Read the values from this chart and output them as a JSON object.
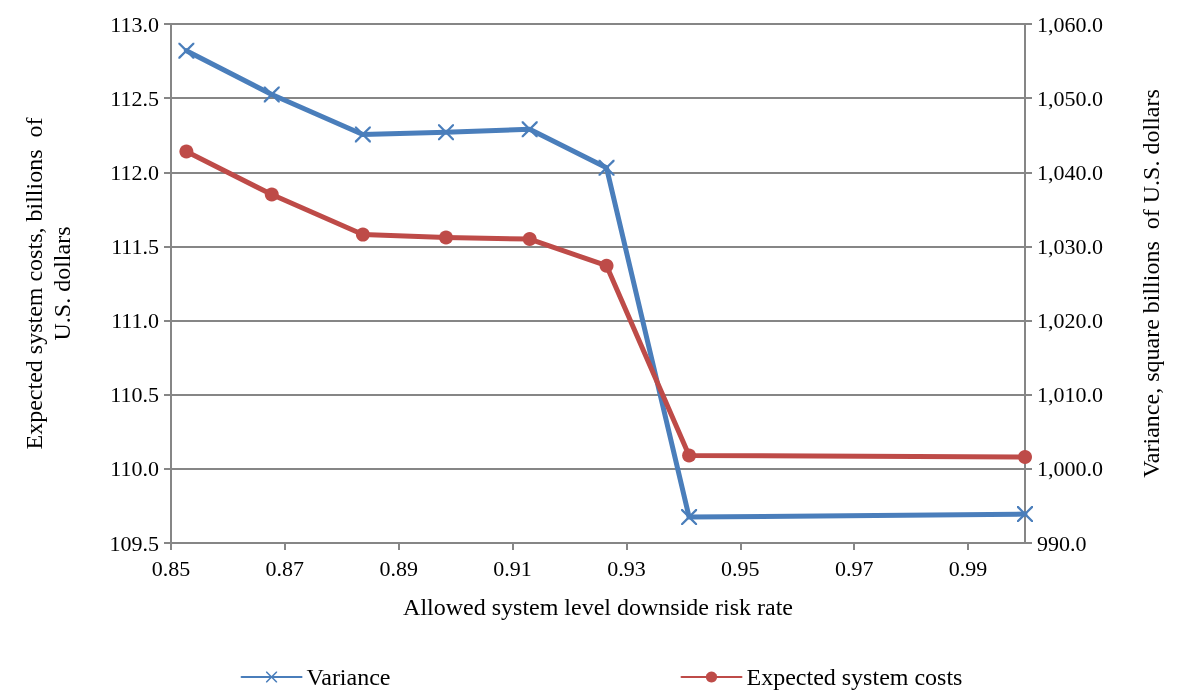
{
  "chart_data": {
    "type": "line",
    "xlabel": "Allowed system level downside risk rate",
    "ylabel": "Expected system costs, billions  of U.S. dollars",
    "y2label": "Variance, square billions  of U.S. dollars",
    "x": [
      0.8527,
      0.8677,
      0.8837,
      0.8983,
      0.913,
      0.9265,
      0.941,
      1.0
    ],
    "series": [
      {
        "name": "Variance",
        "color": "#4a7ebb",
        "axis": "y2",
        "marker": "cross",
        "values": [
          1056.4,
          1050.5,
          1045.1,
          1045.4,
          1045.8,
          1040.6,
          993.5,
          993.9
        ]
      },
      {
        "name": "Expected system costs",
        "color": "#be4b48",
        "marker": "circle",
        "values": [
          112.14,
          111.85,
          111.58,
          111.56,
          111.55,
          111.37,
          110.09,
          110.08
        ]
      }
    ],
    "xlim": [
      0.85,
      1.0
    ],
    "xticks": [
      0.85,
      0.87,
      0.89,
      0.91,
      0.93,
      0.95,
      0.97,
      0.99
    ],
    "ylim": [
      109.5,
      113.0
    ],
    "yticks": [
      {
        "value": 109.5,
        "label": "109.5"
      },
      {
        "value": 110,
        "label": "110.0"
      },
      {
        "value": 110.5,
        "label": "110.5"
      },
      {
        "value": 111,
        "label": "111.0"
      },
      {
        "value": 111.5,
        "label": "111.5"
      },
      {
        "value": 112,
        "label": "112.0"
      },
      {
        "value": 112.5,
        "label": "112.5"
      },
      {
        "value": 113,
        "label": "113.0"
      }
    ],
    "y2lim": [
      990,
      1060
    ],
    "y2ticks": [
      {
        "value": 990,
        "label": "990.0"
      },
      {
        "value": 1000,
        "label": "1,000.0"
      },
      {
        "value": 1010,
        "label": "1,010.0"
      },
      {
        "value": 1020,
        "label": "1,020.0"
      },
      {
        "value": 1030,
        "label": "1,030.0"
      },
      {
        "value": 1040,
        "label": "1,040.0"
      },
      {
        "value": 1050,
        "label": "1,050.0"
      },
      {
        "value": 1060,
        "label": "1,060.0"
      }
    ],
    "grid": "y",
    "legend": "bottom",
    "line_style": "solid"
  }
}
